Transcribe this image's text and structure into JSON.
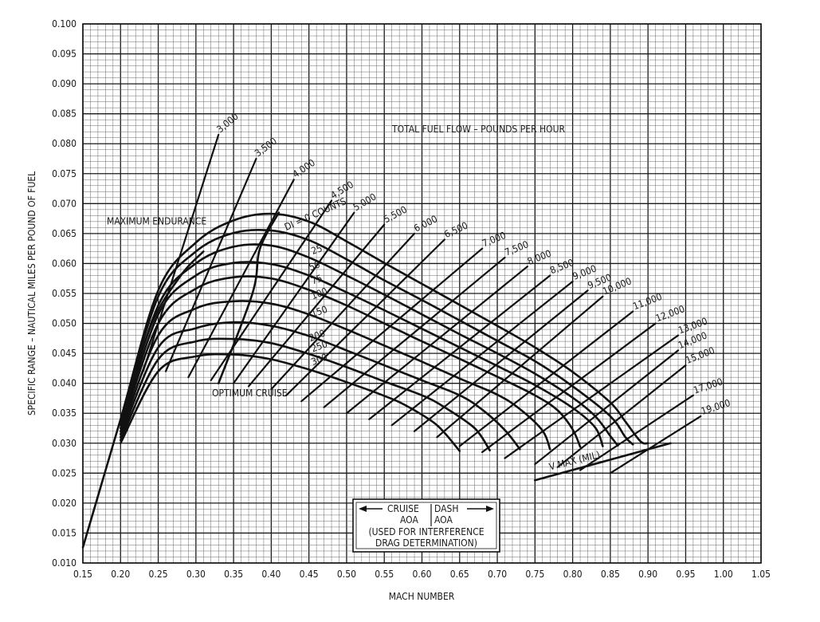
{
  "chart_data": {
    "type": "line",
    "xlabel": "MACH NUMBER",
    "ylabel": "SPECIFIC RANGE – NAUTICAL MILES PER POUND OF FUEL",
    "xlim": [
      0.15,
      1.05
    ],
    "ylim": [
      0.01,
      0.1
    ],
    "x_ticks": [
      "0.15",
      "0.20",
      "0.25",
      "0.30",
      "0.35",
      "0.40",
      "0.45",
      "0.50",
      "0.55",
      "0.60",
      "0.65",
      "0.70",
      "0.75",
      "0.80",
      "0.85",
      "0.90",
      "0.95",
      "1.00",
      "1.05"
    ],
    "y_ticks": [
      "0.010",
      "0.015",
      "0.020",
      "0.025",
      "0.030",
      "0.035",
      "0.040",
      "0.045",
      "0.050",
      "0.055",
      "0.060",
      "0.065",
      "0.070",
      "0.075",
      "0.080",
      "0.085",
      "0.090",
      "0.095",
      "0.100"
    ],
    "grid": true,
    "fuel_flow_title": "TOTAL FUEL FLOW – POUNDS PER HOUR",
    "drag_index_series": [
      {
        "name": "DI = 0 COUNTS",
        "label": "DI = 0 COUNTS",
        "points": [
          [
            0.15,
            0.0126
          ],
          [
            0.2,
            0.034
          ],
          [
            0.25,
            0.0555
          ],
          [
            0.3,
            0.0635
          ],
          [
            0.35,
            0.0672
          ],
          [
            0.4,
            0.0683
          ],
          [
            0.45,
            0.067
          ],
          [
            0.5,
            0.0637
          ],
          [
            0.55,
            0.0601
          ],
          [
            0.6,
            0.0566
          ],
          [
            0.65,
            0.0531
          ],
          [
            0.7,
            0.0496
          ],
          [
            0.75,
            0.046
          ],
          [
            0.8,
            0.0419
          ],
          [
            0.85,
            0.0368
          ],
          [
            0.87,
            0.0336
          ],
          [
            0.89,
            0.0303
          ],
          [
            0.9,
            0.03
          ]
        ]
      },
      {
        "name": "25",
        "label": "25",
        "points": [
          [
            0.2,
            0.0335
          ],
          [
            0.25,
            0.0545
          ],
          [
            0.3,
            0.062
          ],
          [
            0.35,
            0.0651
          ],
          [
            0.4,
            0.0655
          ],
          [
            0.45,
            0.0639
          ],
          [
            0.5,
            0.0607
          ],
          [
            0.55,
            0.0572
          ],
          [
            0.6,
            0.0539
          ],
          [
            0.65,
            0.0505
          ],
          [
            0.7,
            0.0471
          ],
          [
            0.75,
            0.0437
          ],
          [
            0.8,
            0.0395
          ],
          [
            0.85,
            0.0345
          ],
          [
            0.87,
            0.031
          ],
          [
            0.88,
            0.0298
          ]
        ]
      },
      {
        "name": "50",
        "label": "50",
        "points": [
          [
            0.2,
            0.033
          ],
          [
            0.25,
            0.053
          ],
          [
            0.3,
            0.06
          ],
          [
            0.35,
            0.0628
          ],
          [
            0.4,
            0.063
          ],
          [
            0.45,
            0.061
          ],
          [
            0.5,
            0.058
          ],
          [
            0.55,
            0.0548
          ],
          [
            0.6,
            0.0515
          ],
          [
            0.65,
            0.0482
          ],
          [
            0.7,
            0.045
          ],
          [
            0.75,
            0.0416
          ],
          [
            0.8,
            0.0376
          ],
          [
            0.83,
            0.0345
          ],
          [
            0.85,
            0.0312
          ],
          [
            0.86,
            0.0296
          ]
        ]
      },
      {
        "name": "75",
        "label": "75",
        "points": [
          [
            0.2,
            0.0325
          ],
          [
            0.25,
            0.0515
          ],
          [
            0.3,
            0.058
          ],
          [
            0.35,
            0.0601
          ],
          [
            0.4,
            0.0599
          ],
          [
            0.45,
            0.058
          ],
          [
            0.5,
            0.0552
          ],
          [
            0.55,
            0.0522
          ],
          [
            0.6,
            0.0491
          ],
          [
            0.65,
            0.046
          ],
          [
            0.7,
            0.0429
          ],
          [
            0.75,
            0.0397
          ],
          [
            0.8,
            0.0359
          ],
          [
            0.83,
            0.0326
          ],
          [
            0.84,
            0.0295
          ]
        ]
      },
      {
        "name": "100",
        "label": "100",
        "points": [
          [
            0.2,
            0.032
          ],
          [
            0.25,
            0.05
          ],
          [
            0.3,
            0.0558
          ],
          [
            0.35,
            0.0577
          ],
          [
            0.4,
            0.0575
          ],
          [
            0.45,
            0.0556
          ],
          [
            0.5,
            0.053
          ],
          [
            0.55,
            0.05
          ],
          [
            0.6,
            0.047
          ],
          [
            0.65,
            0.0441
          ],
          [
            0.7,
            0.0411
          ],
          [
            0.75,
            0.038
          ],
          [
            0.78,
            0.0355
          ],
          [
            0.8,
            0.0323
          ],
          [
            0.81,
            0.0294
          ]
        ]
      },
      {
        "name": "150",
        "label": "150",
        "points": [
          [
            0.2,
            0.0315
          ],
          [
            0.25,
            0.048
          ],
          [
            0.3,
            0.0525
          ],
          [
            0.35,
            0.0537
          ],
          [
            0.4,
            0.0533
          ],
          [
            0.45,
            0.0515
          ],
          [
            0.5,
            0.049
          ],
          [
            0.55,
            0.0463
          ],
          [
            0.6,
            0.0436
          ],
          [
            0.65,
            0.0408
          ],
          [
            0.7,
            0.0381
          ],
          [
            0.73,
            0.0357
          ],
          [
            0.76,
            0.0321
          ],
          [
            0.77,
            0.029
          ]
        ]
      },
      {
        "name": "200",
        "label": "200",
        "points": [
          [
            0.2,
            0.031
          ],
          [
            0.25,
            0.046
          ],
          [
            0.3,
            0.0492
          ],
          [
            0.35,
            0.0502
          ],
          [
            0.4,
            0.0496
          ],
          [
            0.45,
            0.0479
          ],
          [
            0.5,
            0.0455
          ],
          [
            0.55,
            0.043
          ],
          [
            0.6,
            0.0405
          ],
          [
            0.65,
            0.038
          ],
          [
            0.68,
            0.0356
          ],
          [
            0.71,
            0.0322
          ],
          [
            0.73,
            0.029
          ]
        ]
      },
      {
        "name": "250",
        "label": "250",
        "points": [
          [
            0.2,
            0.0305
          ],
          [
            0.25,
            0.044
          ],
          [
            0.3,
            0.047
          ],
          [
            0.35,
            0.0474
          ],
          [
            0.4,
            0.0467
          ],
          [
            0.45,
            0.0449
          ],
          [
            0.5,
            0.0427
          ],
          [
            0.55,
            0.0403
          ],
          [
            0.6,
            0.038
          ],
          [
            0.63,
            0.036
          ],
          [
            0.67,
            0.0325
          ],
          [
            0.69,
            0.0288
          ]
        ]
      },
      {
        "name": "300",
        "label": "300",
        "points": [
          [
            0.2,
            0.03
          ],
          [
            0.25,
            0.042
          ],
          [
            0.3,
            0.0445
          ],
          [
            0.35,
            0.0448
          ],
          [
            0.4,
            0.044
          ],
          [
            0.45,
            0.0423
          ],
          [
            0.5,
            0.0402
          ],
          [
            0.55,
            0.0379
          ],
          [
            0.58,
            0.0362
          ],
          [
            0.62,
            0.033
          ],
          [
            0.65,
            0.0287
          ]
        ]
      }
    ],
    "boundary_lines": [
      {
        "name": "V MAX (MIL)",
        "label": "V MAX (MIL)",
        "points": [
          [
            0.75,
            0.0238
          ],
          [
            0.93,
            0.03
          ]
        ]
      },
      {
        "name": "OPTIMUM CRUISE",
        "label": "OPTIMUM CRUISE",
        "points": [
          [
            0.33,
            0.04
          ],
          [
            0.375,
            0.055
          ],
          [
            0.385,
            0.0625
          ],
          [
            0.41,
            0.0685
          ]
        ]
      },
      {
        "name": "MAXIMUM ENDURANCE",
        "label": "MAXIMUM ENDURANCE",
        "points": [
          [
            0.2,
            0.0333
          ],
          [
            0.24,
            0.0495
          ],
          [
            0.28,
            0.058
          ],
          [
            0.31,
            0.062
          ]
        ]
      }
    ],
    "fuel_flow_lines": [
      {
        "label": "3,000",
        "points": [
          [
            0.23,
            0.042
          ],
          [
            0.33,
            0.0815
          ]
        ]
      },
      {
        "label": "3,500",
        "points": [
          [
            0.26,
            0.042
          ],
          [
            0.38,
            0.0775
          ]
        ]
      },
      {
        "label": "4,000",
        "points": [
          [
            0.29,
            0.041
          ],
          [
            0.43,
            0.074
          ]
        ]
      },
      {
        "label": "4,500",
        "points": [
          [
            0.32,
            0.0405
          ],
          [
            0.48,
            0.0705
          ]
        ]
      },
      {
        "label": "5,000",
        "points": [
          [
            0.35,
            0.04
          ],
          [
            0.51,
            0.0685
          ]
        ]
      },
      {
        "label": "5,500",
        "points": [
          [
            0.37,
            0.0395
          ],
          [
            0.55,
            0.0665
          ]
        ]
      },
      {
        "label": "6,000",
        "points": [
          [
            0.4,
            0.039
          ],
          [
            0.59,
            0.065
          ]
        ]
      },
      {
        "label": "6,500",
        "points": [
          [
            0.42,
            0.038
          ],
          [
            0.63,
            0.064
          ]
        ]
      },
      {
        "label": "7,000",
        "points": [
          [
            0.44,
            0.037
          ],
          [
            0.68,
            0.0625
          ]
        ]
      },
      {
        "label": "7,500",
        "points": [
          [
            0.47,
            0.036
          ],
          [
            0.71,
            0.061
          ]
        ]
      },
      {
        "label": "8,000",
        "points": [
          [
            0.5,
            0.035
          ],
          [
            0.74,
            0.0595
          ]
        ]
      },
      {
        "label": "8,500",
        "points": [
          [
            0.53,
            0.034
          ],
          [
            0.77,
            0.058
          ]
        ]
      },
      {
        "label": "9,000",
        "points": [
          [
            0.56,
            0.033
          ],
          [
            0.8,
            0.057
          ]
        ]
      },
      {
        "label": "9,500",
        "points": [
          [
            0.59,
            0.032
          ],
          [
            0.82,
            0.0555
          ]
        ]
      },
      {
        "label": "10,000",
        "points": [
          [
            0.62,
            0.031
          ],
          [
            0.84,
            0.0545
          ]
        ]
      },
      {
        "label": "11,000",
        "points": [
          [
            0.65,
            0.0295
          ],
          [
            0.88,
            0.052
          ]
        ]
      },
      {
        "label": "12,000",
        "points": [
          [
            0.68,
            0.0285
          ],
          [
            0.91,
            0.05
          ]
        ]
      },
      {
        "label": "13,000",
        "points": [
          [
            0.71,
            0.0275
          ],
          [
            0.94,
            0.048
          ]
        ]
      },
      {
        "label": "14,000",
        "points": [
          [
            0.75,
            0.0265
          ],
          [
            0.94,
            0.0455
          ]
        ]
      },
      {
        "label": "15,000",
        "points": [
          [
            0.78,
            0.026
          ],
          [
            0.95,
            0.043
          ]
        ]
      },
      {
        "label": "17,000",
        "points": [
          [
            0.81,
            0.0255
          ],
          [
            0.96,
            0.038
          ]
        ]
      },
      {
        "label": "19,000",
        "points": [
          [
            0.85,
            0.025
          ],
          [
            0.97,
            0.0345
          ]
        ]
      }
    ],
    "annotation_box": {
      "cruise": "CRUISE",
      "dash": "DASH",
      "aoa_left": "AOA",
      "aoa_right": "AOA",
      "note_line1": "(USED FOR INTERFERENCE",
      "note_line2": "DRAG DETERMINATION)"
    }
  }
}
